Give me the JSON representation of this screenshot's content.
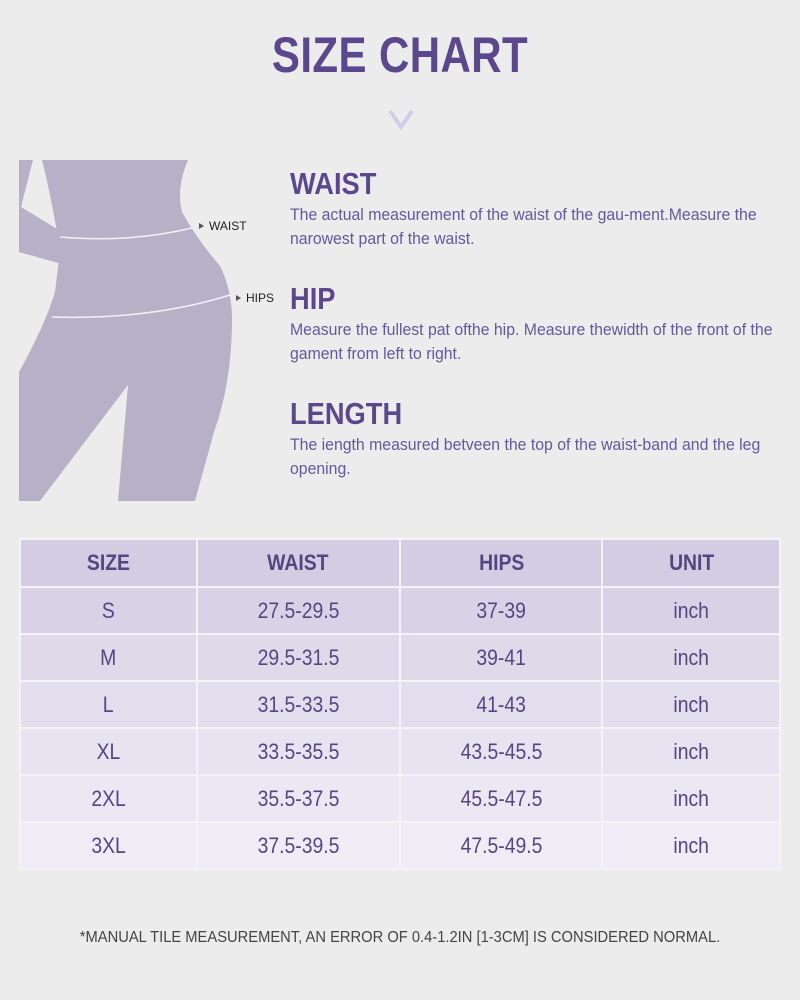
{
  "title": "SIZE CHART",
  "figure": {
    "labels": {
      "waist": "WAIST",
      "hips": "HIPS"
    },
    "color": "#b7b1c8"
  },
  "sections": [
    {
      "heading": "WAIST",
      "text": "The actual measurement of the waist of the gau-ment.Measure the narowest part of the waist."
    },
    {
      "heading": "HIP",
      "text": "Measure the fullest pat ofthe hip. Measure thewidth of the front of the gament from left to right."
    },
    {
      "heading": "LENGTH",
      "text": "The iength measured betveen the top of the waist-band and the leg opening."
    }
  ],
  "table": {
    "headers": [
      "SIZE",
      "WAIST",
      "HIPS",
      "UNIT"
    ],
    "rows": [
      [
        "S",
        "27.5-29.5",
        "37-39",
        "inch"
      ],
      [
        "M",
        "29.5-31.5",
        "39-41",
        "inch"
      ],
      [
        "L",
        "31.5-33.5",
        "41-43",
        "inch"
      ],
      [
        "XL",
        "33.5-35.5",
        "43.5-45.5",
        "inch"
      ],
      [
        "2XL",
        "35.5-37.5",
        "45.5-47.5",
        "inch"
      ],
      [
        "3XL",
        "37.5-39.5",
        "47.5-49.5",
        "inch"
      ]
    ]
  },
  "footnote": "*MANUAL TILE MEASUREMENT, AN ERROR OF 0.4-1.2IN [1-3CM] IS CONSIDERED NORMAL.",
  "colors": {
    "accent": "#5b478c",
    "header_bg": "#d3cce3",
    "background": "#ececec"
  }
}
